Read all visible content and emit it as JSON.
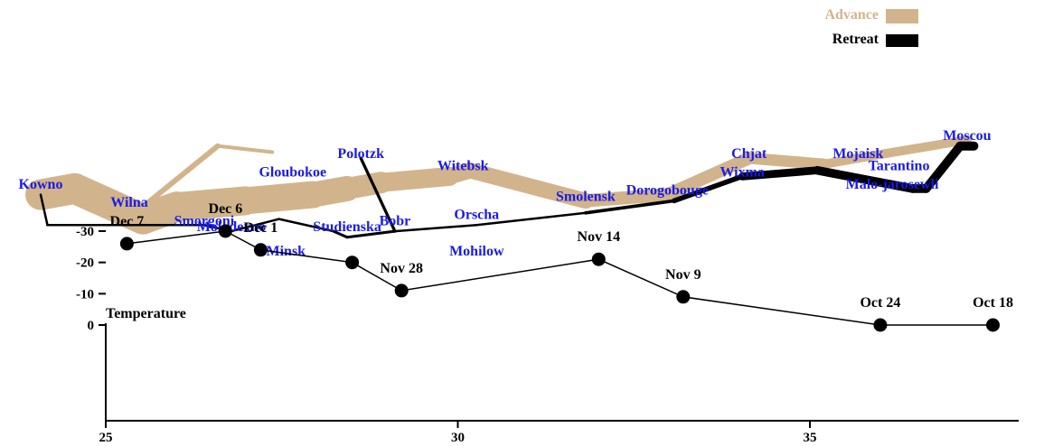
{
  "chart_data": [
    {
      "type": "flow-map",
      "legend": [
        {
          "label": "Advance",
          "color": "#d2b48c"
        },
        {
          "label": "Retreat",
          "color": "#000000"
        }
      ],
      "cities": [
        {
          "name": "Kowno",
          "lon": 24.0,
          "lat": 55.0
        },
        {
          "name": "Wilna",
          "lon": 25.3,
          "lat": 54.7
        },
        {
          "name": "Smorgoni",
          "lon": 26.4,
          "lat": 54.4
        },
        {
          "name": "Molodexno",
          "lon": 26.8,
          "lat": 54.3
        },
        {
          "name": "Gloubokoe",
          "lon": 27.7,
          "lat": 55.2
        },
        {
          "name": "Minsk",
          "lon": 27.6,
          "lat": 53.9
        },
        {
          "name": "Studienska",
          "lon": 28.5,
          "lat": 54.3
        },
        {
          "name": "Polotzk",
          "lon": 28.7,
          "lat": 55.5
        },
        {
          "name": "Bobr",
          "lon": 29.2,
          "lat": 54.4
        },
        {
          "name": "Witebsk",
          "lon": 30.2,
          "lat": 55.3
        },
        {
          "name": "Orscha",
          "lon": 30.4,
          "lat": 54.5
        },
        {
          "name": "Mohilow",
          "lon": 30.4,
          "lat": 53.9
        },
        {
          "name": "Smolensk",
          "lon": 32.0,
          "lat": 54.8
        },
        {
          "name": "Dorogobouge",
          "lon": 33.2,
          "lat": 54.9
        },
        {
          "name": "Wixma",
          "lon": 34.3,
          "lat": 55.2
        },
        {
          "name": "Chjat",
          "lon": 34.4,
          "lat": 55.5
        },
        {
          "name": "Mojaisk",
          "lon": 36.0,
          "lat": 55.5
        },
        {
          "name": "Moscou",
          "lon": 37.6,
          "lat": 55.8
        },
        {
          "name": "Tarantino",
          "lon": 36.6,
          "lat": 55.3
        },
        {
          "name": "Malo-jarosewli",
          "lon": 36.5,
          "lat": 55.0
        }
      ],
      "series": [
        {
          "name": "Advance",
          "direction": "A",
          "color": "#d2b48c",
          "points": [
            {
              "lon": 24.0,
              "lat": 54.9,
              "survivors": 340000
            },
            {
              "lon": 24.5,
              "lat": 55.0,
              "survivors": 340000
            },
            {
              "lon": 25.5,
              "lat": 54.5,
              "survivors": 340000
            },
            {
              "lon": 26.0,
              "lat": 54.7,
              "survivors": 320000
            },
            {
              "lon": 27.0,
              "lat": 54.8,
              "survivors": 300000
            },
            {
              "lon": 28.0,
              "lat": 54.9,
              "survivors": 280000
            },
            {
              "lon": 28.5,
              "lat": 55.0,
              "survivors": 240000
            },
            {
              "lon": 29.0,
              "lat": 55.1,
              "survivors": 210000
            },
            {
              "lon": 30.0,
              "lat": 55.2,
              "survivors": 180000
            },
            {
              "lon": 30.3,
              "lat": 55.3,
              "survivors": 175000
            },
            {
              "lon": 32.0,
              "lat": 54.8,
              "survivors": 145000
            },
            {
              "lon": 33.2,
              "lat": 54.9,
              "survivors": 140000
            },
            {
              "lon": 34.4,
              "lat": 55.5,
              "survivors": 127100
            },
            {
              "lon": 35.5,
              "lat": 55.4,
              "survivors": 100000
            },
            {
              "lon": 36.0,
              "lat": 55.5,
              "survivors": 100000
            },
            {
              "lon": 37.6,
              "lat": 55.8,
              "survivors": 100000
            }
          ]
        },
        {
          "name": "Retreat",
          "direction": "R",
          "color": "#000000",
          "points": [
            {
              "lon": 37.7,
              "lat": 55.7,
              "survivors": 100000
            },
            {
              "lon": 37.5,
              "lat": 55.7,
              "survivors": 98000
            },
            {
              "lon": 37.0,
              "lat": 55.0,
              "survivors": 97000
            },
            {
              "lon": 36.8,
              "lat": 55.0,
              "survivors": 96000
            },
            {
              "lon": 35.4,
              "lat": 55.3,
              "survivors": 87000
            },
            {
              "lon": 34.3,
              "lat": 55.2,
              "survivors": 55000
            },
            {
              "lon": 33.3,
              "lat": 54.8,
              "survivors": 37000
            },
            {
              "lon": 32.0,
              "lat": 54.6,
              "survivors": 24000
            },
            {
              "lon": 30.4,
              "lat": 54.4,
              "survivors": 20000
            },
            {
              "lon": 29.2,
              "lat": 54.3,
              "survivors": 20000
            },
            {
              "lon": 28.5,
              "lat": 54.2,
              "survivors": 20000
            },
            {
              "lon": 28.3,
              "lat": 54.3,
              "survivors": 20000
            },
            {
              "lon": 27.5,
              "lat": 54.5,
              "survivors": 20000
            },
            {
              "lon": 26.8,
              "lat": 54.3,
              "survivors": 12000
            },
            {
              "lon": 26.4,
              "lat": 54.4,
              "survivors": 14000
            },
            {
              "lon": 25.0,
              "lat": 54.4,
              "survivors": 8000
            },
            {
              "lon": 24.4,
              "lat": 54.4,
              "survivors": 4000
            },
            {
              "lon": 24.2,
              "lat": 54.4,
              "survivors": 4000
            },
            {
              "lon": 24.1,
              "lat": 54.4,
              "survivors": 4000
            }
          ]
        },
        {
          "name": "Advance",
          "direction": "A",
          "color": "#d2b48c",
          "points": [
            {
              "lon": 24.0,
              "lat": 55.1,
              "survivors": 60000
            },
            {
              "lon": 24.5,
              "lat": 55.2,
              "survivors": 60000
            },
            {
              "lon": 25.5,
              "lat": 54.7,
              "survivors": 60000
            },
            {
              "lon": 26.6,
              "lat": 55.7,
              "survivors": 40000
            },
            {
              "lon": 27.4,
              "lat": 55.6,
              "survivors": 33000
            }
          ]
        },
        {
          "name": "Retreat",
          "direction": "R",
          "color": "#000000",
          "points": [
            {
              "lon": 28.7,
              "lat": 55.5,
              "survivors": 33000
            },
            {
              "lon": 29.2,
              "lat": 54.3,
              "survivors": 30000
            },
            {
              "lon": 28.5,
              "lat": 54.2,
              "survivors": 30000
            },
            {
              "lon": 28.3,
              "lat": 54.3,
              "survivors": 28000
            }
          ]
        },
        {
          "name": "Retreat",
          "direction": "R",
          "color": "#000000",
          "points": [
            {
              "lon": 24.4,
              "lat": 54.4,
              "survivors": 6000
            },
            {
              "lon": 24.2,
              "lat": 54.4,
              "survivors": 6000
            },
            {
              "lon": 24.1,
              "lat": 54.4,
              "survivors": 6000
            },
            {
              "lon": 24.0,
              "lat": 54.9,
              "survivors": 6000
            }
          ]
        }
      ]
    },
    {
      "type": "line",
      "ylabel": "Temperature",
      "xlim": [
        24,
        38
      ],
      "ylim": [
        -31,
        1
      ],
      "xticks": [
        25,
        30,
        35
      ],
      "yticks": [
        0,
        -10,
        -20,
        -30
      ],
      "points": [
        {
          "lon": 37.6,
          "temp": 0,
          "date": "Oct 18"
        },
        {
          "lon": 36.0,
          "temp": 0,
          "date": "Oct 24"
        },
        {
          "lon": 33.2,
          "temp": -9,
          "date": "Nov 9"
        },
        {
          "lon": 32.0,
          "temp": -21,
          "date": "Nov 14"
        },
        {
          "lon": 29.2,
          "temp": -11,
          "date": "Nov 28"
        },
        {
          "lon": 28.5,
          "temp": -20,
          "date": ""
        },
        {
          "lon": 27.2,
          "temp": -24,
          "date": "Dec 1"
        },
        {
          "lon": 26.7,
          "temp": -30,
          "date": "Dec 6"
        },
        {
          "lon": 25.3,
          "temp": -26,
          "date": "Dec 7"
        }
      ]
    }
  ]
}
